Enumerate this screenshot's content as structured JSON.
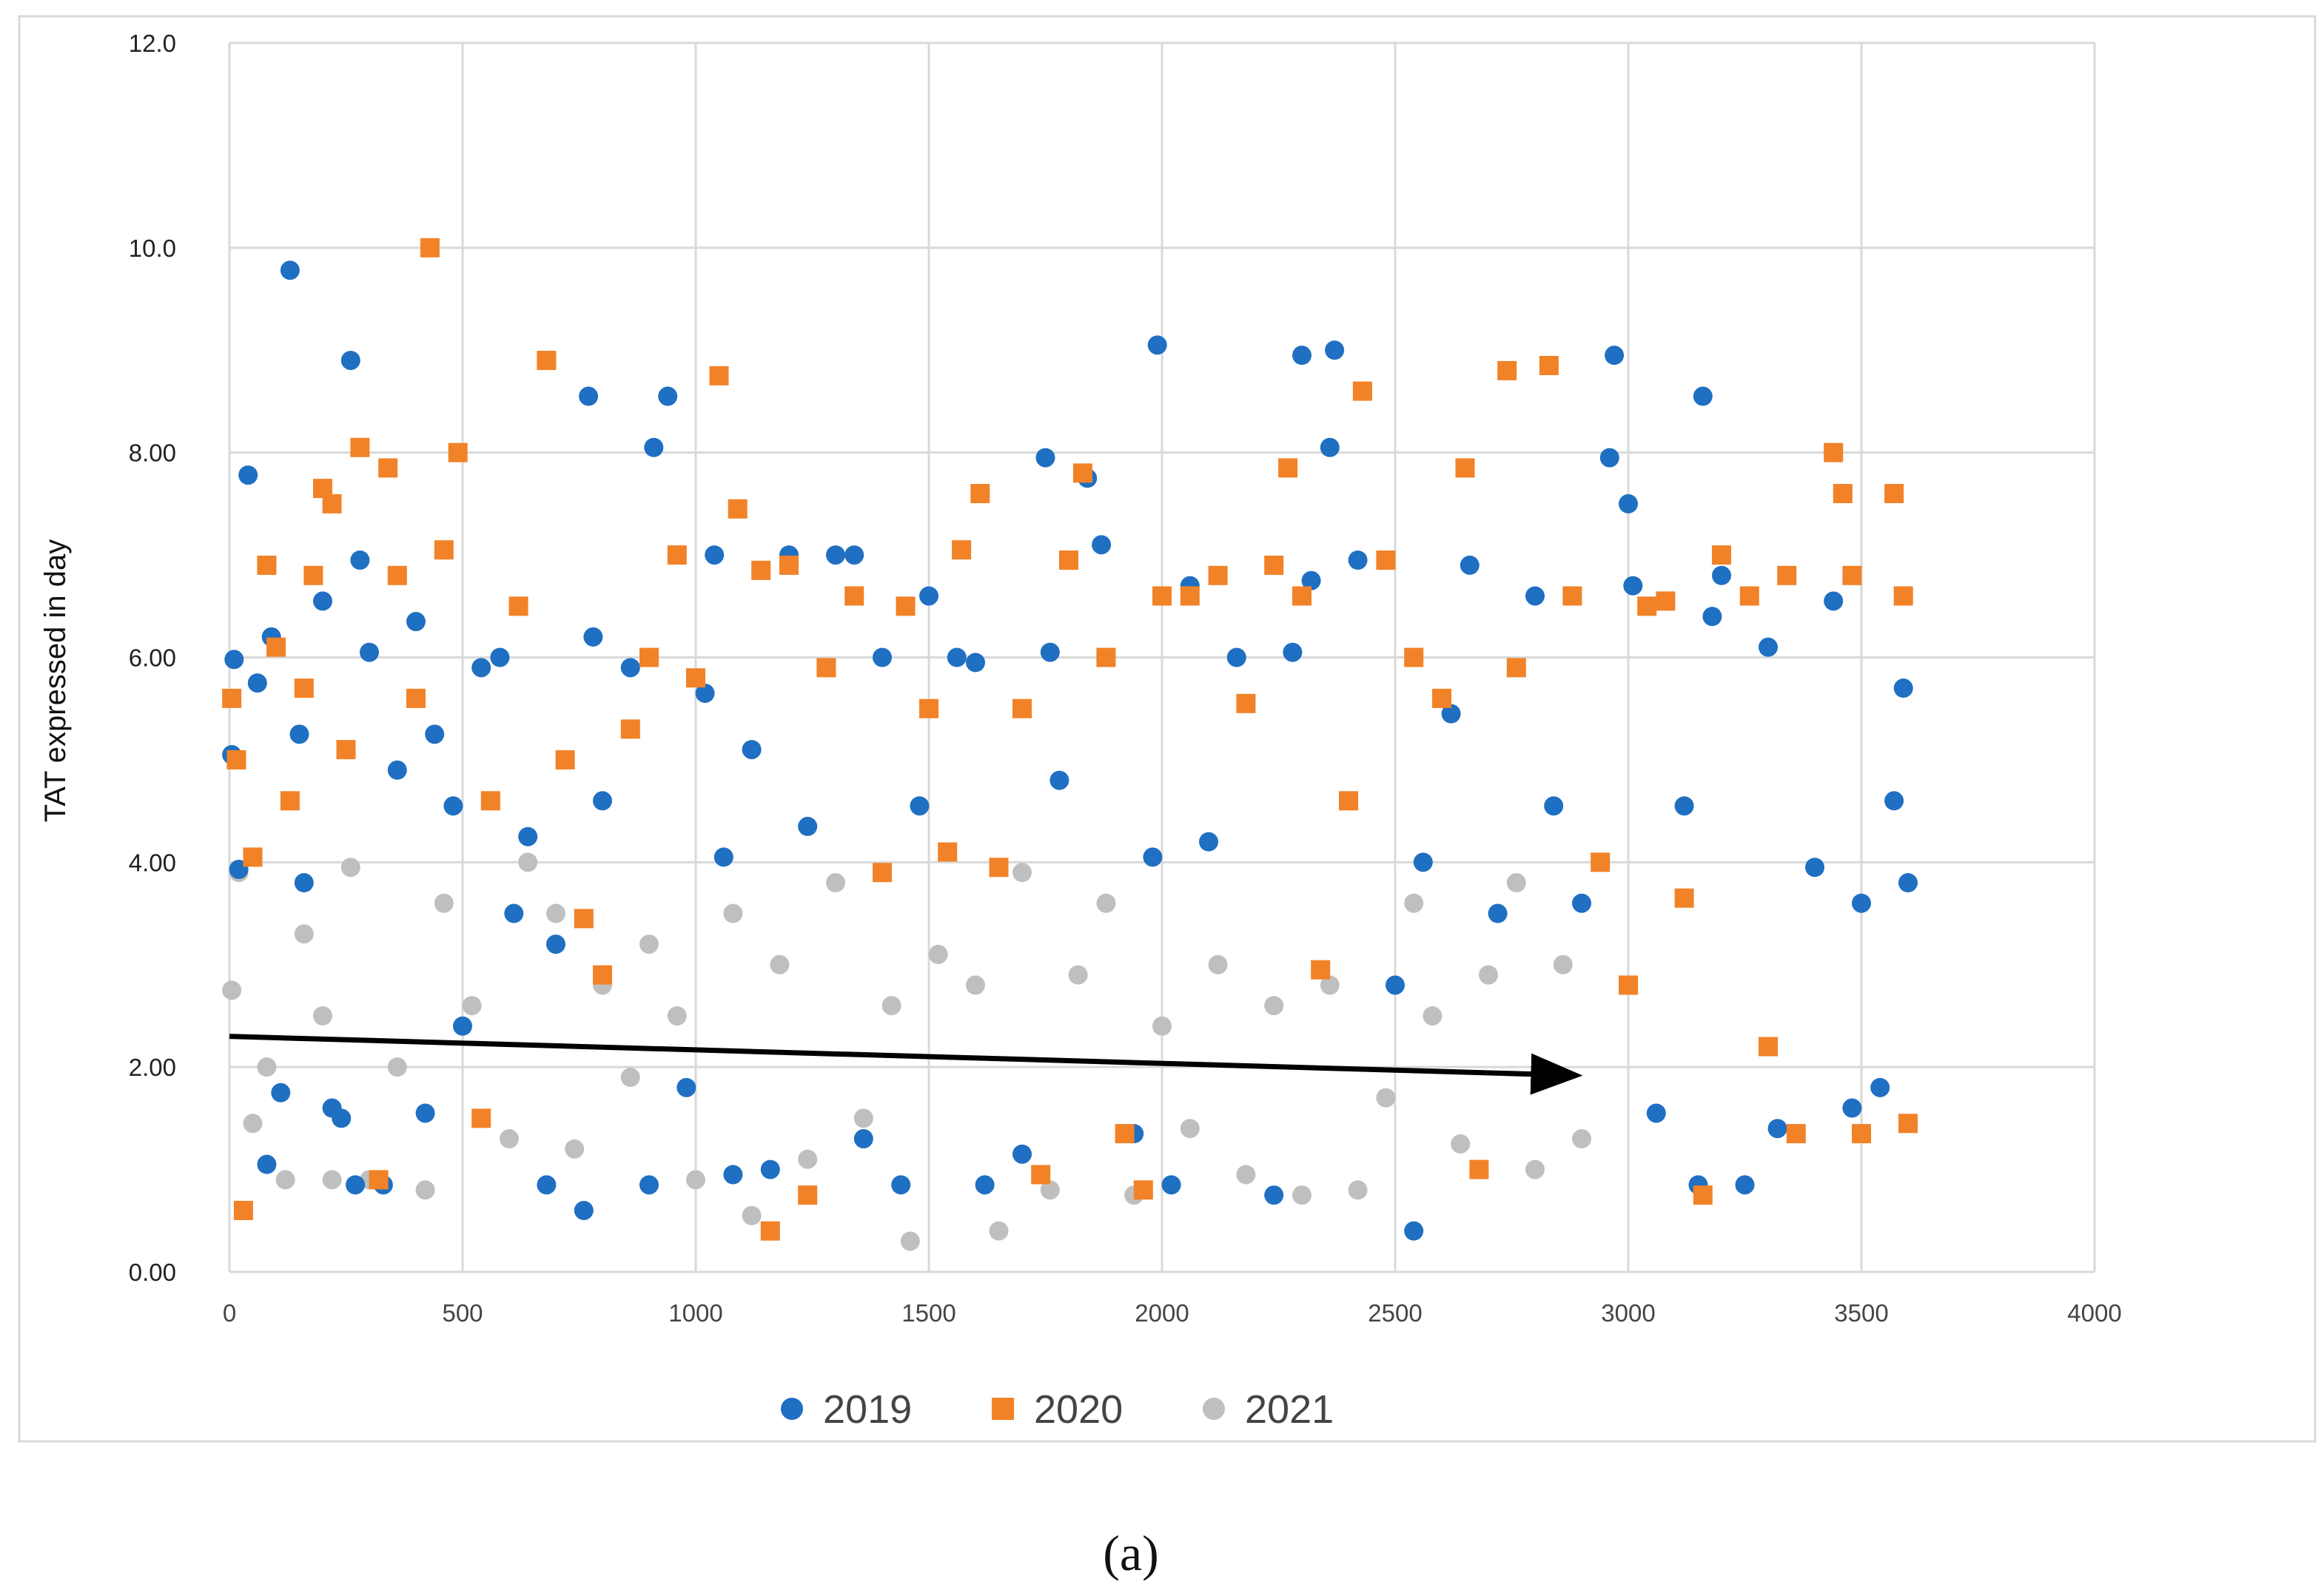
{
  "chart_data": {
    "type": "scatter",
    "title": "",
    "xlabel": "",
    "ylabel": "TAT expressed in day",
    "xlim": [
      0,
      4000
    ],
    "ylim": [
      0,
      12
    ],
    "x_ticks": [
      "0",
      "500",
      "1000",
      "1500",
      "2000",
      "2500",
      "3000",
      "3500",
      "4000"
    ],
    "y_ticks": [
      "0.00",
      "2.00",
      "4.00",
      "6.00",
      "8.00",
      "10.0",
      "12.0"
    ],
    "grid": true,
    "legend_position": "bottom",
    "caption": "(a)",
    "series": [
      {
        "name": "2019",
        "marker": "circle",
        "color": "#1f6fc2",
        "points": [
          [
            5,
            5.05
          ],
          [
            10,
            5.98
          ],
          [
            20,
            3.93
          ],
          [
            40,
            7.78
          ],
          [
            60,
            5.75
          ],
          [
            80,
            1.05
          ],
          [
            90,
            6.2
          ],
          [
            110,
            1.75
          ],
          [
            130,
            9.78
          ],
          [
            150,
            5.25
          ],
          [
            160,
            3.8
          ],
          [
            200,
            6.55
          ],
          [
            220,
            1.6
          ],
          [
            240,
            1.5
          ],
          [
            260,
            8.9
          ],
          [
            270,
            0.85
          ],
          [
            280,
            6.95
          ],
          [
            300,
            6.05
          ],
          [
            330,
            0.85
          ],
          [
            360,
            4.9
          ],
          [
            400,
            6.35
          ],
          [
            420,
            1.55
          ],
          [
            440,
            5.25
          ],
          [
            480,
            4.55
          ],
          [
            500,
            2.4
          ],
          [
            540,
            5.9
          ],
          [
            580,
            6.0
          ],
          [
            610,
            3.5
          ],
          [
            640,
            4.25
          ],
          [
            680,
            0.85
          ],
          [
            700,
            3.2
          ],
          [
            760,
            0.6
          ],
          [
            770,
            8.55
          ],
          [
            780,
            6.2
          ],
          [
            800,
            4.6
          ],
          [
            860,
            5.9
          ],
          [
            900,
            0.85
          ],
          [
            910,
            8.05
          ],
          [
            940,
            8.55
          ],
          [
            980,
            1.8
          ],
          [
            1020,
            5.65
          ],
          [
            1040,
            7.0
          ],
          [
            1060,
            4.05
          ],
          [
            1080,
            0.95
          ],
          [
            1120,
            5.1
          ],
          [
            1160,
            1.0
          ],
          [
            1200,
            7.0
          ],
          [
            1240,
            4.35
          ],
          [
            1300,
            7.0
          ],
          [
            1340,
            7.0
          ],
          [
            1360,
            1.3
          ],
          [
            1400,
            6.0
          ],
          [
            1440,
            0.85
          ],
          [
            1480,
            4.55
          ],
          [
            1500,
            6.6
          ],
          [
            1560,
            6.0
          ],
          [
            1600,
            5.95
          ],
          [
            1620,
            0.85
          ],
          [
            1700,
            1.15
          ],
          [
            1750,
            7.95
          ],
          [
            1760,
            6.05
          ],
          [
            1780,
            4.8
          ],
          [
            1840,
            7.75
          ],
          [
            1870,
            7.1
          ],
          [
            1880,
            6.0
          ],
          [
            1940,
            1.35
          ],
          [
            1980,
            4.05
          ],
          [
            1990,
            9.05
          ],
          [
            2020,
            0.85
          ],
          [
            2060,
            6.7
          ],
          [
            2100,
            4.2
          ],
          [
            2160,
            6.0
          ],
          [
            2240,
            0.75
          ],
          [
            2280,
            6.05
          ],
          [
            2300,
            8.95
          ],
          [
            2320,
            6.75
          ],
          [
            2360,
            8.05
          ],
          [
            2370,
            9.0
          ],
          [
            2420,
            6.95
          ],
          [
            2500,
            2.8
          ],
          [
            2540,
            0.4
          ],
          [
            2560,
            4.0
          ],
          [
            2620,
            5.45
          ],
          [
            2660,
            6.9
          ],
          [
            2720,
            3.5
          ],
          [
            2800,
            6.6
          ],
          [
            2840,
            4.55
          ],
          [
            2900,
            3.6
          ],
          [
            2960,
            7.95
          ],
          [
            2970,
            8.95
          ],
          [
            3000,
            7.5
          ],
          [
            3010,
            6.7
          ],
          [
            3060,
            1.55
          ],
          [
            3120,
            4.55
          ],
          [
            3150,
            0.85
          ],
          [
            3160,
            8.55
          ],
          [
            3180,
            6.4
          ],
          [
            3200,
            6.8
          ],
          [
            3250,
            0.85
          ],
          [
            3300,
            6.1
          ],
          [
            3320,
            1.4
          ],
          [
            3400,
            3.95
          ],
          [
            3440,
            6.55
          ],
          [
            3460,
            7.6
          ],
          [
            3480,
            1.6
          ],
          [
            3500,
            3.6
          ],
          [
            3540,
            1.8
          ],
          [
            3570,
            4.6
          ],
          [
            3590,
            5.7
          ],
          [
            3600,
            3.8
          ]
        ]
      },
      {
        "name": "2020",
        "marker": "square",
        "color": "#f28227",
        "points": [
          [
            5,
            5.6
          ],
          [
            15,
            5.0
          ],
          [
            30,
            0.6
          ],
          [
            50,
            4.05
          ],
          [
            80,
            6.9
          ],
          [
            100,
            6.1
          ],
          [
            130,
            4.6
          ],
          [
            160,
            5.7
          ],
          [
            180,
            6.8
          ],
          [
            200,
            7.65
          ],
          [
            220,
            7.5
          ],
          [
            250,
            5.1
          ],
          [
            280,
            8.05
          ],
          [
            320,
            0.9
          ],
          [
            340,
            7.85
          ],
          [
            360,
            6.8
          ],
          [
            400,
            5.6
          ],
          [
            430,
            10.0
          ],
          [
            460,
            7.05
          ],
          [
            490,
            8.0
          ],
          [
            540,
            1.5
          ],
          [
            560,
            4.6
          ],
          [
            620,
            6.5
          ],
          [
            680,
            8.9
          ],
          [
            720,
            5.0
          ],
          [
            760,
            3.45
          ],
          [
            800,
            2.9
          ],
          [
            860,
            5.3
          ],
          [
            900,
            6.0
          ],
          [
            960,
            7.0
          ],
          [
            1000,
            5.8
          ],
          [
            1050,
            8.75
          ],
          [
            1090,
            7.45
          ],
          [
            1140,
            6.85
          ],
          [
            1160,
            0.4
          ],
          [
            1200,
            6.9
          ],
          [
            1240,
            0.75
          ],
          [
            1280,
            5.9
          ],
          [
            1340,
            6.6
          ],
          [
            1400,
            3.9
          ],
          [
            1450,
            6.5
          ],
          [
            1500,
            5.5
          ],
          [
            1540,
            4.1
          ],
          [
            1570,
            7.05
          ],
          [
            1610,
            7.6
          ],
          [
            1650,
            3.95
          ],
          [
            1700,
            5.5
          ],
          [
            1740,
            0.95
          ],
          [
            1800,
            6.95
          ],
          [
            1830,
            7.8
          ],
          [
            1880,
            6.0
          ],
          [
            1920,
            1.35
          ],
          [
            1960,
            0.8
          ],
          [
            2000,
            6.6
          ],
          [
            2060,
            6.6
          ],
          [
            2120,
            6.8
          ],
          [
            2180,
            5.55
          ],
          [
            2240,
            6.9
          ],
          [
            2270,
            7.85
          ],
          [
            2300,
            6.6
          ],
          [
            2340,
            2.95
          ],
          [
            2400,
            4.6
          ],
          [
            2430,
            8.6
          ],
          [
            2480,
            6.95
          ],
          [
            2540,
            6.0
          ],
          [
            2600,
            5.6
          ],
          [
            2650,
            7.85
          ],
          [
            2680,
            1.0
          ],
          [
            2740,
            8.8
          ],
          [
            2760,
            5.9
          ],
          [
            2830,
            8.85
          ],
          [
            2880,
            6.6
          ],
          [
            2940,
            4.0
          ],
          [
            3000,
            2.8
          ],
          [
            3040,
            6.5
          ],
          [
            3080,
            6.55
          ],
          [
            3120,
            3.65
          ],
          [
            3160,
            0.75
          ],
          [
            3200,
            7.0
          ],
          [
            3260,
            6.6
          ],
          [
            3300,
            2.2
          ],
          [
            3340,
            6.8
          ],
          [
            3360,
            1.35
          ],
          [
            3440,
            8.0
          ],
          [
            3460,
            7.6
          ],
          [
            3480,
            6.8
          ],
          [
            3500,
            1.35
          ],
          [
            3570,
            7.6
          ],
          [
            3590,
            6.6
          ],
          [
            3600,
            1.45
          ]
        ]
      },
      {
        "name": "2021",
        "marker": "circle",
        "color": "#bfbfbf",
        "points": [
          [
            5,
            2.75
          ],
          [
            20,
            3.9
          ],
          [
            50,
            1.45
          ],
          [
            80,
            2.0
          ],
          [
            120,
            0.9
          ],
          [
            160,
            3.3
          ],
          [
            200,
            2.5
          ],
          [
            220,
            0.9
          ],
          [
            260,
            3.95
          ],
          [
            300,
            0.9
          ],
          [
            360,
            2.0
          ],
          [
            420,
            0.8
          ],
          [
            460,
            3.6
          ],
          [
            520,
            2.6
          ],
          [
            600,
            1.3
          ],
          [
            640,
            4.0
          ],
          [
            700,
            3.5
          ],
          [
            740,
            1.2
          ],
          [
            800,
            2.8
          ],
          [
            860,
            1.9
          ],
          [
            900,
            3.2
          ],
          [
            960,
            2.5
          ],
          [
            1000,
            0.9
          ],
          [
            1080,
            3.5
          ],
          [
            1120,
            0.55
          ],
          [
            1180,
            3.0
          ],
          [
            1240,
            1.1
          ],
          [
            1300,
            3.8
          ],
          [
            1360,
            1.5
          ],
          [
            1420,
            2.6
          ],
          [
            1460,
            0.3
          ],
          [
            1520,
            3.1
          ],
          [
            1600,
            2.8
          ],
          [
            1650,
            0.4
          ],
          [
            1700,
            3.9
          ],
          [
            1760,
            0.8
          ],
          [
            1820,
            2.9
          ],
          [
            1880,
            3.6
          ],
          [
            1940,
            0.75
          ],
          [
            2000,
            2.4
          ],
          [
            2060,
            1.4
          ],
          [
            2120,
            3.0
          ],
          [
            2180,
            0.95
          ],
          [
            2240,
            2.6
          ],
          [
            2300,
            0.75
          ],
          [
            2360,
            2.8
          ],
          [
            2420,
            0.8
          ],
          [
            2480,
            1.7
          ],
          [
            2540,
            3.6
          ],
          [
            2580,
            2.5
          ],
          [
            2640,
            1.25
          ],
          [
            2700,
            2.9
          ],
          [
            2760,
            3.8
          ],
          [
            2800,
            1.0
          ],
          [
            2860,
            3.0
          ],
          [
            2900,
            1.3
          ]
        ]
      }
    ],
    "annotations": [
      {
        "type": "trend-arrow",
        "from": [
          0,
          2.3
        ],
        "to": [
          2880,
          1.92
        ],
        "color": "#000000"
      }
    ]
  }
}
